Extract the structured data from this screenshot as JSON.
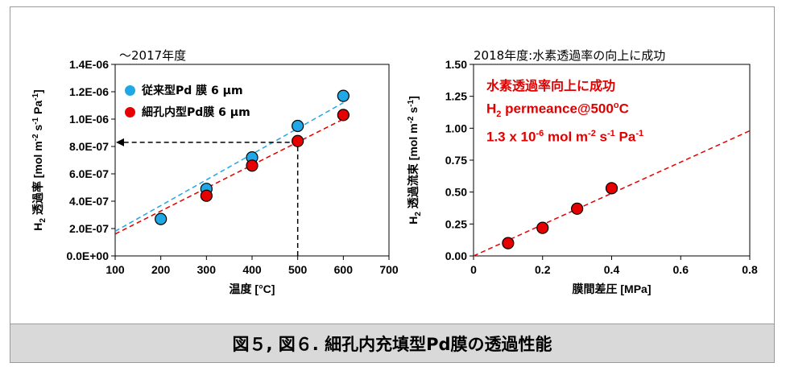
{
  "caption": "図５, 図６. 細孔内充填型Pd膜の透過性能",
  "chart_data": [
    {
      "type": "scatter",
      "title": "～2017年度",
      "xlabel": "温度 [°C]",
      "ylabel": "H2 透過率 [mol m-2 s-1 Pa-1]",
      "xlim": [
        100,
        700
      ],
      "ylim": [
        0,
        1.4e-06
      ],
      "xticks": [
        "100",
        "200",
        "300",
        "400",
        "500",
        "600",
        "700"
      ],
      "yticks": [
        "0.0E+00",
        "2.0E-07",
        "4.0E-07",
        "6.0E-07",
        "8.0E-07",
        "1.0E-06",
        "1.2E-06",
        "1.4E-06"
      ],
      "series": [
        {
          "name": "従来型Pd 膜 6 μm",
          "color": "#1fa7e6",
          "x": [
            200,
            300,
            400,
            500,
            600
          ],
          "y": [
            2.7e-07,
            4.9e-07,
            7.2e-07,
            9.5e-07,
            1.17e-06
          ],
          "trend": {
            "x": [
              100,
              600
            ],
            "y": [
              1.8e-07,
              1.12e-06
            ]
          }
        },
        {
          "name": "細孔内型Pd膜 6 μm",
          "color": "#e60000",
          "x": [
            300,
            400,
            500,
            600
          ],
          "y": [
            4.4e-07,
            6.6e-07,
            8.4e-07,
            1.03e-06
          ],
          "trend": {
            "x": [
              100,
              600
            ],
            "y": [
              1.6e-07,
              1e-06
            ]
          }
        }
      ],
      "annotation": {
        "x": 500,
        "y": 8.3e-07
      },
      "legend": "top-left",
      "grid": false
    },
    {
      "type": "scatter",
      "title": "2018年度:水素透過率の向上に成功",
      "xlabel": "膜間差圧 [MPa]",
      "ylabel": "H2 透過流束 [mol m-2 s-1]",
      "xlim": [
        0,
        0.8
      ],
      "ylim": [
        0,
        1.5
      ],
      "xticks": [
        "0",
        "0.2",
        "0.4",
        "0.6",
        "0.8"
      ],
      "yticks": [
        "0.00",
        "0.25",
        "0.50",
        "0.75",
        "1.00",
        "1.25",
        "1.50"
      ],
      "series": [
        {
          "color": "#e60000",
          "x": [
            0.1,
            0.2,
            0.3,
            0.4
          ],
          "y": [
            0.1,
            0.22,
            0.37,
            0.53
          ],
          "trend": {
            "x": [
              0,
              0.8
            ],
            "y": [
              0,
              0.98
            ]
          }
        }
      ],
      "annotations": [
        "水素透過率向上に成功",
        "H2 permeance@500°C",
        "1.3 x 10-6 mol m-2 s-1 Pa-1"
      ],
      "grid": false
    }
  ]
}
